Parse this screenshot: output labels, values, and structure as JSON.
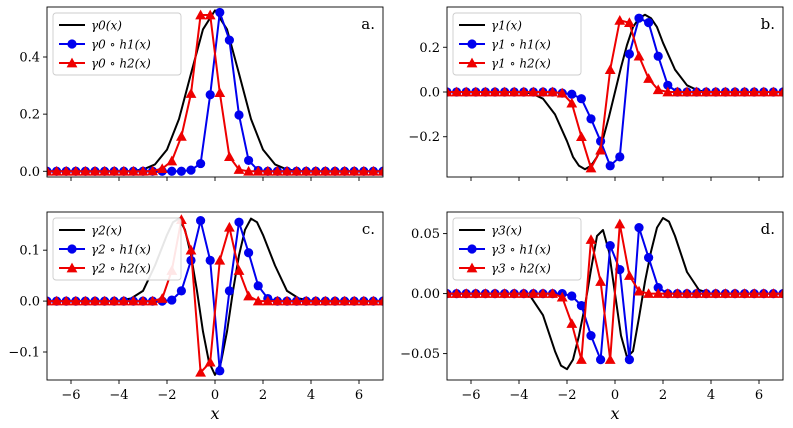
{
  "chart_data": [
    {
      "type": "line",
      "panel_label": "a.",
      "xlim": [
        -7,
        7
      ],
      "ylim": [
        -0.02,
        0.575
      ],
      "xticks": [
        -6,
        -4,
        -2,
        0,
        2,
        4,
        6
      ],
      "xtick_labels": [
        "−6",
        "−4",
        "−2",
        "0",
        "2",
        "4",
        "6"
      ],
      "yticks": [
        0.0,
        0.2,
        0.4
      ],
      "ytick_labels": [
        "0.0",
        "0.2",
        "0.4"
      ],
      "xlabel": "",
      "legend": {
        "position": "top-left",
        "entries": [
          {
            "label": "γ0(x)",
            "color": "#000000",
            "marker": "none"
          },
          {
            "label": "γ0 ∘ h1(x)",
            "color": "#0000ee",
            "marker": "circle"
          },
          {
            "label": "γ0 ∘ h2(x)",
            "color": "#ee0000",
            "marker": "triangle"
          }
        ]
      },
      "series": [
        {
          "name": "γ0(x)",
          "x": [
            -7,
            -6.5,
            -6,
            -5.5,
            -5,
            -4.5,
            -4,
            -3.5,
            -3,
            -2.5,
            -2,
            -1.5,
            -1,
            -0.5,
            0,
            0.5,
            1,
            1.5,
            2,
            2.5,
            3,
            3.5,
            4,
            4.5,
            5,
            5.5,
            6,
            6.5,
            7
          ],
          "y": [
            0,
            0,
            0,
            0,
            0,
            0,
            0,
            0.001,
            0.006,
            0.024,
            0.076,
            0.183,
            0.342,
            0.497,
            0.563,
            0.497,
            0.342,
            0.183,
            0.076,
            0.024,
            0.006,
            0.001,
            0,
            0,
            0,
            0,
            0,
            0,
            0
          ]
        },
        {
          "name": "γ0 ∘ h1(x)",
          "x": [
            -7,
            -6.6,
            -6.2,
            -5.8,
            -5.4,
            -5,
            -4.6,
            -4.2,
            -3.8,
            -3.4,
            -3,
            -2.6,
            -2.2,
            -1.8,
            -1.4,
            -1,
            -0.6,
            -0.2,
            0.2,
            0.6,
            1,
            1.4,
            1.8,
            2.2,
            2.6,
            3,
            3.4,
            3.8,
            4.2,
            4.6,
            5,
            5.4,
            5.8,
            6.2,
            6.6,
            7
          ],
          "y": [
            0,
            0,
            0,
            0,
            0,
            0,
            0,
            0,
            0,
            0,
            0,
            0,
            0,
            0,
            0,
            0.004,
            0.027,
            0.268,
            0.556,
            0.459,
            0.197,
            0.038,
            0.003,
            0,
            0,
            0,
            0,
            0,
            0,
            0,
            0,
            0,
            0,
            0,
            0,
            0
          ]
        },
        {
          "name": "γ0 ∘ h2(x)",
          "x": [
            -7,
            -6.6,
            -6.2,
            -5.8,
            -5.4,
            -5,
            -4.6,
            -4.2,
            -3.8,
            -3.4,
            -3,
            -2.6,
            -2.2,
            -1.8,
            -1.4,
            -1,
            -0.6,
            -0.2,
            0.2,
            0.6,
            1,
            1.4,
            1.8,
            2.2,
            2.6,
            3,
            3.4,
            3.8,
            4.2,
            4.6,
            5,
            5.4,
            5.8,
            6.2,
            6.6,
            7
          ],
          "y": [
            0,
            0,
            0,
            0,
            0,
            0,
            0,
            0,
            0,
            0,
            0,
            0.001,
            0.009,
            0.036,
            0.122,
            0.272,
            0.547,
            0.547,
            0.275,
            0.051,
            0.006,
            0,
            0,
            0,
            0,
            0,
            0,
            0,
            0,
            0,
            0,
            0,
            0,
            0,
            0,
            0
          ]
        }
      ]
    },
    {
      "type": "line",
      "panel_label": "b.",
      "xlim": [
        -7,
        7
      ],
      "ylim": [
        -0.38,
        0.38
      ],
      "xticks": [
        -6,
        -4,
        -2,
        0,
        2,
        4,
        6
      ],
      "xtick_labels": [
        "−6",
        "−4",
        "−2",
        "0",
        "2",
        "4",
        "6"
      ],
      "yticks": [
        -0.2,
        0.0,
        0.2
      ],
      "ytick_labels": [
        "−0.2",
        "0.0",
        "0.2"
      ],
      "xlabel": "",
      "legend": {
        "position": "top-left",
        "entries": [
          {
            "label": "γ1(x)",
            "color": "#000000",
            "marker": "none"
          },
          {
            "label": "γ1 ∘ h1(x)",
            "color": "#0000ee",
            "marker": "circle"
          },
          {
            "label": "γ1 ∘ h2(x)",
            "color": "#ee0000",
            "marker": "triangle"
          }
        ]
      },
      "series": [
        {
          "name": "γ1(x)",
          "x": [
            -7,
            -6.5,
            -6,
            -5.5,
            -5,
            -4.5,
            -4,
            -3.5,
            -3,
            -2.5,
            -2,
            -1.75,
            -1.5,
            -1.25,
            -1,
            -0.75,
            -0.5,
            -0.25,
            0,
            0.25,
            0.5,
            0.75,
            1,
            1.25,
            1.5,
            1.75,
            2,
            2.5,
            3,
            3.5,
            4,
            4.5,
            5,
            5.5,
            6,
            6.5,
            7
          ],
          "y": [
            0,
            0,
            0,
            0,
            0,
            0,
            0,
            -0.005,
            -0.03,
            -0.1,
            -0.22,
            -0.29,
            -0.33,
            -0.345,
            -0.33,
            -0.29,
            -0.21,
            -0.11,
            0,
            0.11,
            0.21,
            0.29,
            0.33,
            0.345,
            0.33,
            0.29,
            0.22,
            0.1,
            0.03,
            0.005,
            0,
            0,
            0,
            0,
            0,
            0,
            0
          ]
        },
        {
          "name": "γ1 ∘ h1(x)",
          "x": [
            -7,
            -6.6,
            -6.2,
            -5.8,
            -5.4,
            -5,
            -4.6,
            -4.2,
            -3.8,
            -3.4,
            -3,
            -2.6,
            -2.2,
            -1.8,
            -1.4,
            -1,
            -0.6,
            -0.2,
            0.2,
            0.6,
            1,
            1.4,
            1.8,
            2.2,
            2.6,
            3,
            3.4,
            3.8,
            4.2,
            4.6,
            5,
            5.4,
            5.8,
            6.2,
            6.6,
            7
          ],
          "y": [
            0,
            0,
            0,
            0,
            0,
            0,
            0,
            0,
            0,
            0,
            0,
            0,
            -0.005,
            -0.01,
            -0.03,
            -0.12,
            -0.22,
            -0.33,
            -0.29,
            0.17,
            0.33,
            0.31,
            0.16,
            0.03,
            0,
            0,
            0,
            0,
            0,
            0,
            0,
            0,
            0,
            0,
            0,
            0
          ]
        },
        {
          "name": "γ1 ∘ h2(x)",
          "x": [
            -7,
            -6.6,
            -6.2,
            -5.8,
            -5.4,
            -5,
            -4.6,
            -4.2,
            -3.8,
            -3.4,
            -3,
            -2.6,
            -2.2,
            -1.8,
            -1.4,
            -1,
            -0.6,
            -0.2,
            0.2,
            0.6,
            1,
            1.4,
            1.8,
            2.2,
            2.6,
            3,
            3.4,
            3.8,
            4.2,
            4.6,
            5,
            5.4,
            5.8,
            6.2,
            6.6,
            7
          ],
          "y": [
            0,
            0,
            0,
            0,
            0,
            0,
            0,
            0,
            0,
            0,
            0,
            0,
            -0.005,
            -0.05,
            -0.2,
            -0.34,
            -0.26,
            0.1,
            0.32,
            0.31,
            0.16,
            0.06,
            0.01,
            0,
            0,
            0,
            0,
            0,
            0,
            0,
            0,
            0,
            0,
            0,
            0,
            0
          ]
        }
      ]
    },
    {
      "type": "line",
      "panel_label": "c.",
      "xlim": [
        -7,
        7
      ],
      "ylim": [
        -0.155,
        0.175
      ],
      "xticks": [
        -6,
        -4,
        -2,
        0,
        2,
        4,
        6
      ],
      "xtick_labels": [
        "−6",
        "−4",
        "−2",
        "0",
        "2",
        "4",
        "6"
      ],
      "yticks": [
        -0.1,
        0.0,
        0.1
      ],
      "ytick_labels": [
        "−0.1",
        "0.0",
        "0.1"
      ],
      "xlabel": "x",
      "legend": {
        "position": "top-left",
        "entries": [
          {
            "label": "γ2(x)",
            "color": "#000000",
            "marker": "none"
          },
          {
            "label": "γ2 ∘ h1(x)",
            "color": "#0000ee",
            "marker": "circle"
          },
          {
            "label": "γ2 ∘ h2(x)",
            "color": "#ee0000",
            "marker": "triangle"
          }
        ]
      },
      "series": [
        {
          "name": "γ2(x)",
          "x": [
            -7,
            -6,
            -5,
            -4.5,
            -4,
            -3.5,
            -3,
            -2.5,
            -2,
            -1.75,
            -1.5,
            -1.25,
            -1,
            -0.75,
            -0.5,
            -0.25,
            0,
            0.25,
            0.5,
            0.75,
            1,
            1.25,
            1.5,
            1.75,
            2,
            2.5,
            3,
            3.5,
            4,
            4.5,
            5,
            6,
            7
          ],
          "y": [
            0,
            0,
            0,
            0,
            0.001,
            0.005,
            0.02,
            0.07,
            0.13,
            0.155,
            0.162,
            0.14,
            0.09,
            0.02,
            -0.06,
            -0.12,
            -0.145,
            -0.12,
            -0.06,
            0.02,
            0.09,
            0.14,
            0.162,
            0.155,
            0.13,
            0.07,
            0.02,
            0.005,
            0.001,
            0,
            0,
            0,
            0
          ]
        },
        {
          "name": "γ2 ∘ h1(x)",
          "x": [
            -7,
            -6.6,
            -6.2,
            -5.8,
            -5.4,
            -5,
            -4.6,
            -4.2,
            -3.8,
            -3.4,
            -3,
            -2.6,
            -2.2,
            -1.8,
            -1.4,
            -1,
            -0.6,
            -0.2,
            0.2,
            0.6,
            1,
            1.4,
            1.8,
            2.2,
            2.6,
            3,
            3.4,
            3.8,
            4.2,
            4.6,
            5,
            5.4,
            5.8,
            6.2,
            6.6,
            7
          ],
          "y": [
            0,
            0,
            0,
            0,
            0,
            0,
            0,
            0,
            0,
            0,
            0,
            0,
            0,
            0.002,
            0.02,
            0.08,
            0.158,
            0.08,
            -0.137,
            0.02,
            0.155,
            0.095,
            0.03,
            0.005,
            0,
            0,
            0,
            0,
            0,
            0,
            0,
            0,
            0,
            0,
            0,
            0
          ]
        },
        {
          "name": "γ2 ∘ h2(x)",
          "x": [
            -7,
            -6.6,
            -6.2,
            -5.8,
            -5.4,
            -5,
            -4.6,
            -4.2,
            -3.8,
            -3.4,
            -3,
            -2.6,
            -2.2,
            -1.8,
            -1.4,
            -1,
            -0.6,
            -0.2,
            0.2,
            0.6,
            1,
            1.4,
            1.8,
            2.2,
            2.6,
            3,
            3.4,
            3.8,
            4.2,
            4.6,
            5,
            5.4,
            5.8,
            6.2,
            6.6,
            7
          ],
          "y": [
            0,
            0,
            0,
            0,
            0,
            0,
            0,
            0,
            0,
            0,
            0,
            0,
            0.005,
            0.06,
            0.16,
            0.1,
            -0.14,
            -0.12,
            0.08,
            0.145,
            0.06,
            0.01,
            0,
            0,
            0,
            0,
            0,
            0,
            0,
            0,
            0,
            0,
            0,
            0,
            0,
            0
          ]
        }
      ]
    },
    {
      "type": "line",
      "panel_label": "d.",
      "xlim": [
        -7,
        7
      ],
      "ylim": [
        -0.072,
        0.068
      ],
      "xticks": [
        -6,
        -4,
        -2,
        0,
        2,
        4,
        6
      ],
      "xtick_labels": [
        "−6",
        "−4",
        "−2",
        "0",
        "2",
        "4",
        "6"
      ],
      "yticks": [
        -0.05,
        0.0,
        0.05
      ],
      "ytick_labels": [
        "−0.05",
        "0.00",
        "0.05"
      ],
      "xlabel": "x",
      "legend": {
        "position": "top-left",
        "entries": [
          {
            "label": "γ3(x)",
            "color": "#000000",
            "marker": "none"
          },
          {
            "label": "γ3 ∘ h1(x)",
            "color": "#0000ee",
            "marker": "circle"
          },
          {
            "label": "γ3 ∘ h2(x)",
            "color": "#ee0000",
            "marker": "triangle"
          }
        ]
      },
      "series": [
        {
          "name": "γ3(x)",
          "x": [
            -7,
            -6,
            -5,
            -4.5,
            -4,
            -3.5,
            -3,
            -2.5,
            -2.25,
            -2,
            -1.75,
            -1.5,
            -1.25,
            -1,
            -0.75,
            -0.5,
            -0.25,
            0,
            0.25,
            0.5,
            0.75,
            1,
            1.25,
            1.5,
            1.75,
            2,
            2.25,
            2.5,
            3,
            3.5,
            4,
            4.5,
            5,
            6,
            7
          ],
          "y": [
            0,
            0,
            0,
            0,
            0,
            -0.003,
            -0.018,
            -0.048,
            -0.06,
            -0.063,
            -0.055,
            -0.035,
            -0.01,
            0.02,
            0.048,
            0.053,
            0.035,
            0,
            -0.035,
            -0.053,
            -0.048,
            -0.02,
            0.01,
            0.035,
            0.055,
            0.063,
            0.06,
            0.048,
            0.018,
            0.003,
            0,
            0,
            0,
            0,
            0
          ]
        },
        {
          "name": "γ3 ∘ h1(x)",
          "x": [
            -7,
            -6.6,
            -6.2,
            -5.8,
            -5.4,
            -5,
            -4.6,
            -4.2,
            -3.8,
            -3.4,
            -3,
            -2.6,
            -2.2,
            -1.8,
            -1.4,
            -1,
            -0.6,
            -0.2,
            0.2,
            0.6,
            1,
            1.4,
            1.8,
            2.2,
            2.6,
            3,
            3.4,
            3.8,
            4.2,
            4.6,
            5,
            5.4,
            5.8,
            6.2,
            6.6,
            7
          ],
          "y": [
            0,
            0,
            0,
            0,
            0,
            0,
            0,
            0,
            0,
            0,
            0,
            0,
            0,
            -0.002,
            -0.01,
            -0.035,
            -0.055,
            0.04,
            0.02,
            -0.055,
            0.055,
            0.03,
            0.005,
            0,
            0,
            0,
            0,
            0,
            0,
            0,
            0,
            0,
            0,
            0,
            0,
            0
          ]
        },
        {
          "name": "γ3 ∘ h2(x)",
          "x": [
            -7,
            -6.6,
            -6.2,
            -5.8,
            -5.4,
            -5,
            -4.6,
            -4.2,
            -3.8,
            -3.4,
            -3,
            -2.6,
            -2.2,
            -1.8,
            -1.4,
            -1,
            -0.6,
            -0.2,
            0.2,
            0.6,
            1,
            1.4,
            1.8,
            2.2,
            2.6,
            3,
            3.4,
            3.8,
            4.2,
            4.6,
            5,
            5.4,
            5.8,
            6.2,
            6.6,
            7
          ],
          "y": [
            0,
            0,
            0,
            0,
            0,
            0,
            0,
            0,
            0,
            0,
            0,
            0,
            -0.003,
            -0.025,
            -0.055,
            0.045,
            0.01,
            -0.055,
            0.058,
            0.015,
            0.002,
            0,
            0,
            0,
            0,
            0,
            0,
            0,
            0,
            0,
            0,
            0,
            0,
            0,
            0,
            0
          ]
        }
      ]
    }
  ]
}
